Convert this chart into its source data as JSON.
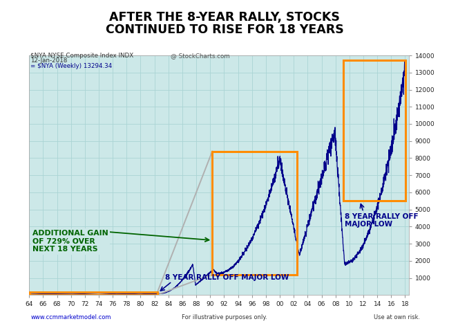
{
  "title_line1": "AFTER THE 8-YEAR RALLY, STOCKS",
  "title_line2": "CONTINUED TO RISE FOR 18 YEARS",
  "subtitle_left": "$NYA NYSE Composite Index INDX",
  "subtitle_date": "12-Jan-2018",
  "subtitle_mid": "@ StockCharts.com",
  "subtitle_series": "= $NYA (Weekly) 13294.34",
  "footer_left": "www.ccmmarketmodel.com",
  "footer_mid": "For illustrative purposes only.",
  "footer_right": "Use at own risk.",
  "plot_bg": "#cce8e8",
  "grid_color": "#aad4d4",
  "line_color": "#00008B",
  "title_color": "#000000",
  "box_color_orange": "#FF8C00",
  "annotation_green": "#006400",
  "annotation_blue": "#00008B",
  "y_min": 0,
  "y_max": 14000,
  "x_start_year": 1964,
  "x_end_year": 2018,
  "yticks": [
    1000,
    2000,
    3000,
    4000,
    5000,
    6000,
    7000,
    8000,
    9000,
    10000,
    11000,
    12000,
    13000,
    14000
  ],
  "xticks": [
    64,
    66,
    68,
    70,
    72,
    74,
    76,
    78,
    80,
    82,
    84,
    86,
    88,
    90,
    92,
    94,
    96,
    98,
    0,
    2,
    4,
    6,
    8,
    10,
    12,
    14,
    16,
    18
  ],
  "xtick_years": [
    1964,
    1966,
    1968,
    1970,
    1972,
    1974,
    1976,
    1978,
    1980,
    1982,
    1984,
    1986,
    1988,
    1990,
    1992,
    1994,
    1996,
    1998,
    2000,
    2002,
    2004,
    2006,
    2008,
    2010,
    2012,
    2014,
    2016,
    2018
  ]
}
